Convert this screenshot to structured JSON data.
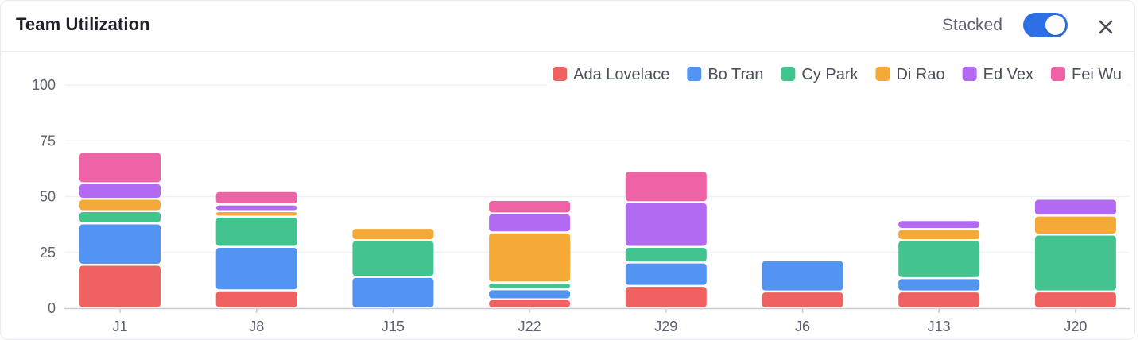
{
  "header": {
    "title": "Team Utilization",
    "stacked_label": "Stacked",
    "stacked_on": true,
    "close_icon": "close-icon"
  },
  "colors": {
    "toggle_on": "#2f6fe6",
    "grid": "#eef0f3",
    "axis": "#c9ccd2"
  },
  "chart_data": {
    "type": "bar",
    "stacked": true,
    "categories": [
      "J1",
      "J8",
      "J15",
      "J22",
      "J29",
      "J6",
      "J13",
      "J20"
    ],
    "yticks": [
      0,
      25,
      50,
      75,
      100
    ],
    "ylim": [
      0,
      100
    ],
    "grid": true,
    "legend_position": "top-right",
    "series": [
      {
        "name": "Ada Lovelace",
        "color": "#f06262",
        "values": [
          19.5,
          8,
          0,
          4,
          10,
          7.5,
          7.5,
          7.5
        ]
      },
      {
        "name": "Bo Tran",
        "color": "#5294f2",
        "values": [
          18.5,
          19.5,
          14,
          4.5,
          10.5,
          14,
          6,
          0
        ]
      },
      {
        "name": "Cy Park",
        "color": "#43c38d",
        "values": [
          5.5,
          13.5,
          16.5,
          3,
          7,
          0,
          17,
          25.5
        ]
      },
      {
        "name": "Di Rao",
        "color": "#f4a939",
        "values": [
          5.5,
          2.5,
          5.5,
          22.5,
          0,
          0,
          5,
          8.5
        ]
      },
      {
        "name": "Ed Vex",
        "color": "#b26af3",
        "values": [
          7,
          3,
          0,
          8.5,
          20,
          0,
          4,
          7.5
        ]
      },
      {
        "name": "Fei Wu",
        "color": "#ef62a5",
        "values": [
          14,
          6,
          0,
          6,
          14,
          0,
          0,
          0
        ]
      }
    ]
  }
}
